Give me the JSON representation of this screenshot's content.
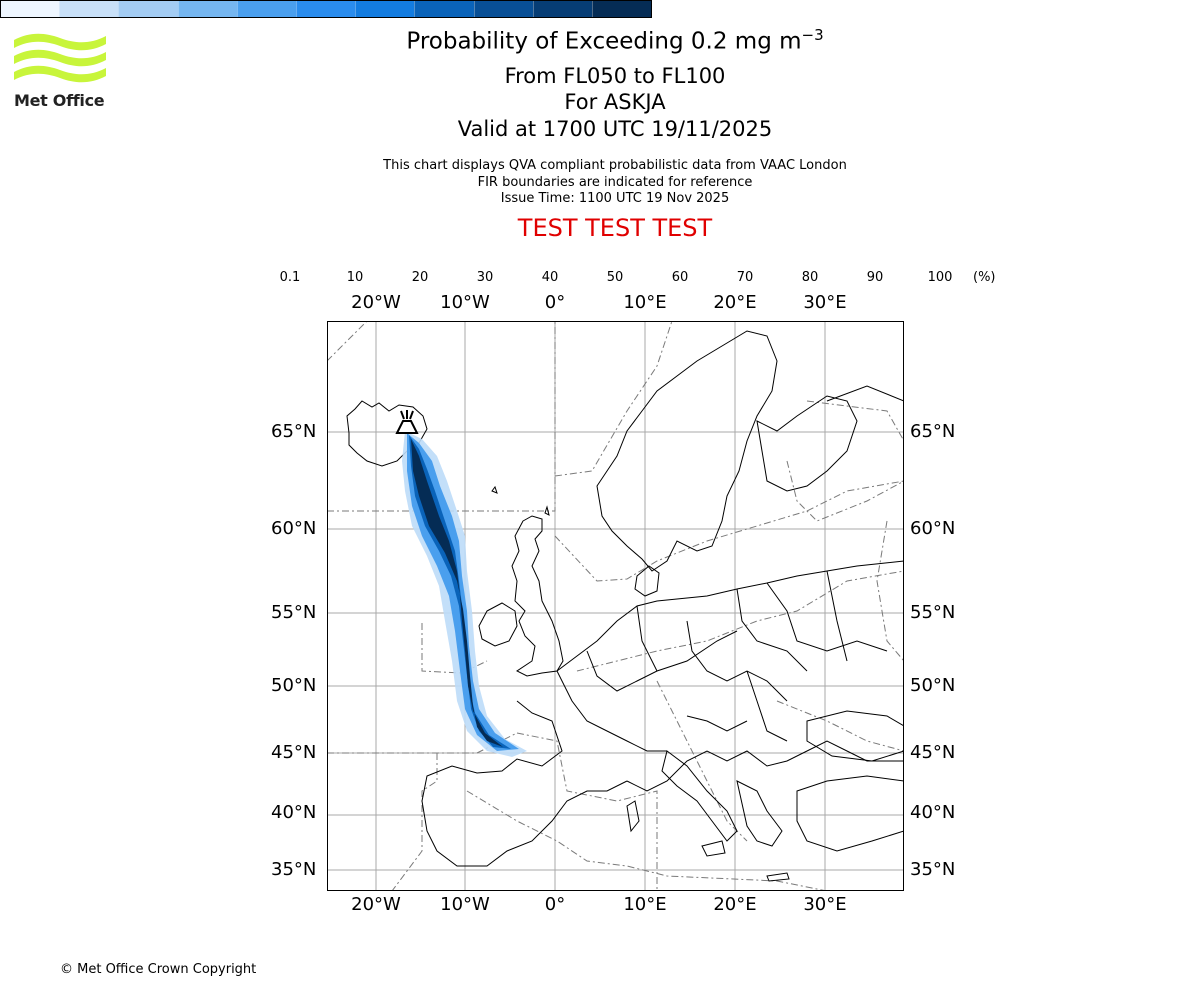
{
  "logo": {
    "name": "Met Office"
  },
  "header": {
    "title_main": "Probability of Exceeding 0.2 mg m",
    "title_sup": "−3",
    "levels": "From FL050 to FL100",
    "volcano": "For ASKJA",
    "valid": "Valid at 1700 UTC 19/11/2025",
    "note1": "This chart displays QVA compliant probabilistic data from VAAC London",
    "note2": "FIR boundaries are indicated for reference",
    "note3": "Issue Time: 1100 UTC 19 Nov 2025",
    "test": "TEST TEST TEST"
  },
  "colorbar": {
    "ticks": [
      "0.1",
      "10",
      "20",
      "30",
      "40",
      "50",
      "60",
      "70",
      "80",
      "90",
      "100"
    ],
    "unit": "(%)",
    "colors": [
      "#eef6ff",
      "#c8e0f8",
      "#a3ccf3",
      "#75b6f0",
      "#4a9fee",
      "#2a8ced",
      "#137ce0",
      "#0a63b9",
      "#084f96",
      "#063d75",
      "#052c55"
    ]
  },
  "map": {
    "lon_labels": [
      "20°W",
      "10°W",
      "0°",
      "10°E",
      "20°E",
      "30°E"
    ],
    "lat_labels": [
      "65°N",
      "60°N",
      "55°N",
      "50°N",
      "45°N",
      "40°N",
      "35°N"
    ],
    "volcano_icon": "volcano-icon"
  },
  "footer": {
    "copyright": "© Met Office Crown Copyright"
  }
}
